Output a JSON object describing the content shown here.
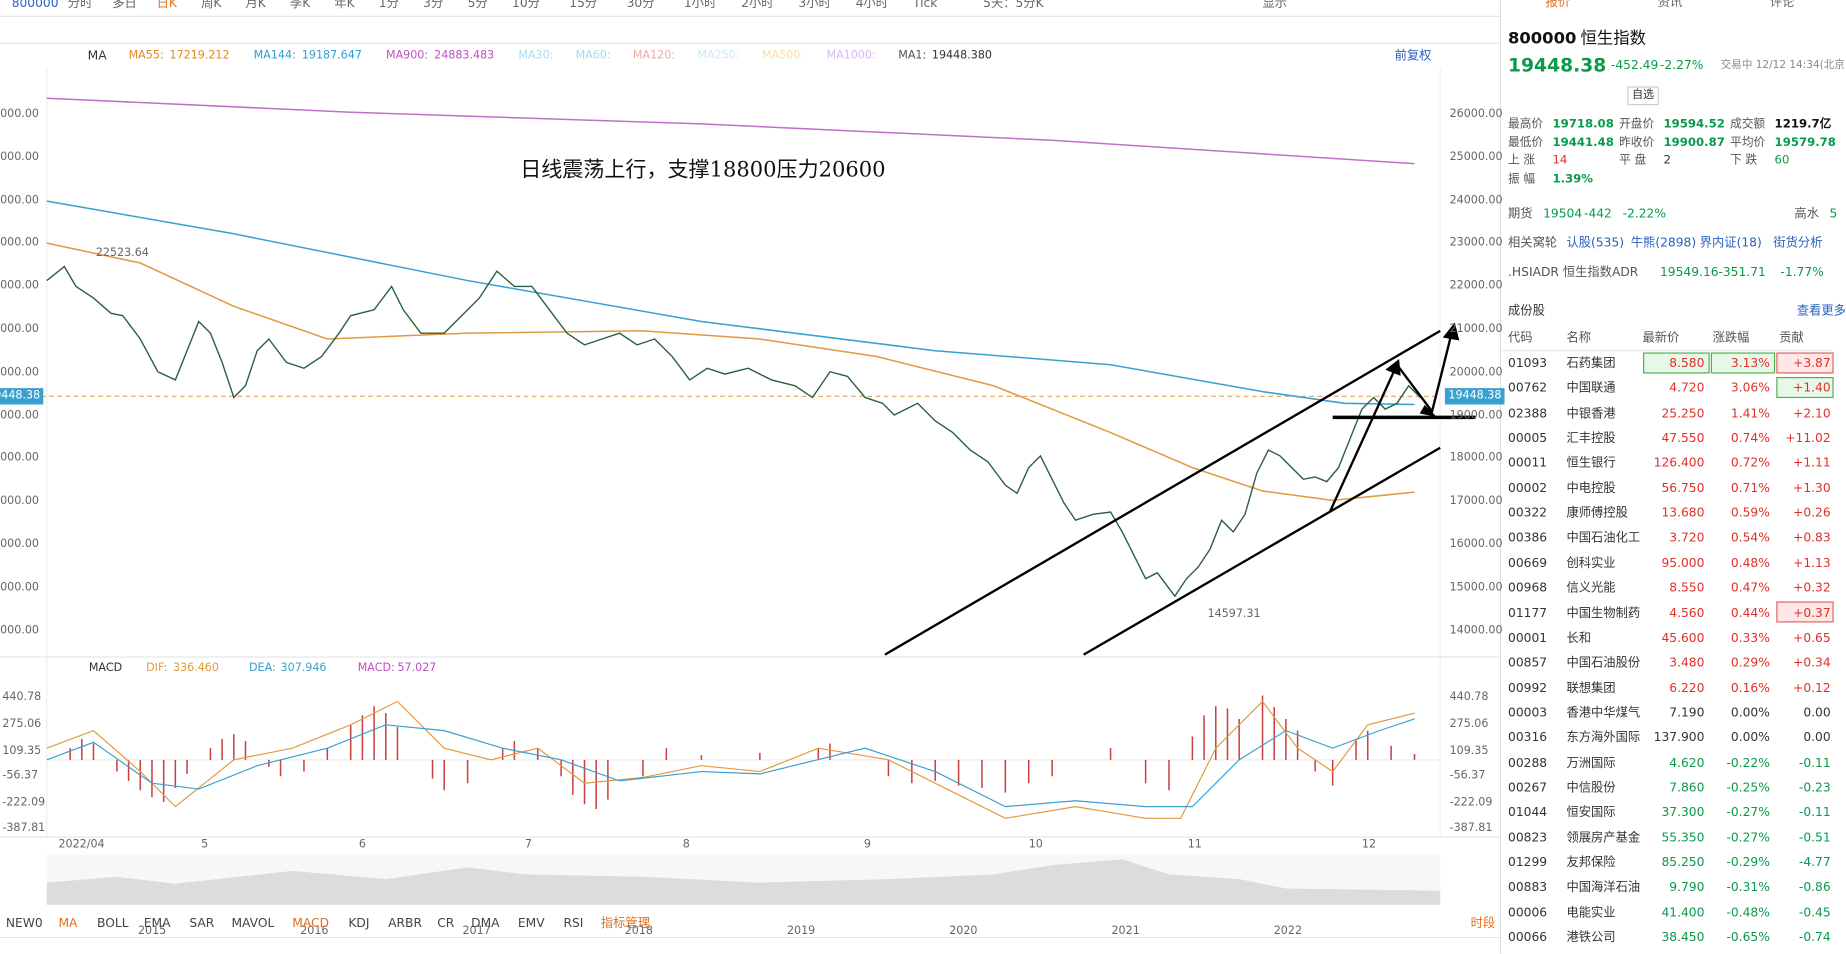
{
  "toolbar": {
    "symbol": "800000",
    "periods": [
      "分时",
      "多日",
      "日K",
      "周K",
      "月K",
      "季K",
      "年K",
      "1分",
      "3分",
      "5分",
      "10分",
      "15分",
      "30分",
      "1小时",
      "2小时",
      "3小时",
      "4小时",
      "Tick",
      "5天：5分K"
    ],
    "active": "日K",
    "display": "显示"
  },
  "ma_legend": {
    "label": "MA",
    "items": [
      {
        "name": "MA55:",
        "value": "17219.212",
        "color": "#e08a1e"
      },
      {
        "name": "MA144:",
        "value": "19187.647",
        "color": "#2a9fd6"
      },
      {
        "name": "MA900:",
        "value": "24883.483",
        "color": "#c050c0"
      },
      {
        "name": "MA30:",
        "color": "#a8d8f0"
      },
      {
        "name": "MA60:",
        "color": "#a8d8f0"
      },
      {
        "name": "MA120:",
        "color": "#f0a8a8"
      },
      {
        "name": "MA250:",
        "color": "#c8e8f8"
      },
      {
        "name": "MA500:",
        "color": "#f8e0a0"
      },
      {
        "name": "MA1000:",
        "color": "#d8b8f0"
      },
      {
        "name": "MA1:",
        "value": "19448.380",
        "color": "#555555"
      }
    ],
    "adjust": "前复权"
  },
  "price_axis": [
    "26000.00",
    "25000.00",
    "24000.00",
    "23000.00",
    "22000.00",
    "21000.00",
    "20000.00",
    "19000.00",
    "18000.00",
    "17000.00",
    "16000.00",
    "15000.00",
    "14000.00"
  ],
  "current_price": "19448.38",
  "annotations": {
    "note": "日线震荡上行，支撑18800压力20600",
    "high": "22523.64",
    "low": "14597.31"
  },
  "macd_legend": {
    "label": "MACD",
    "dif": "DIF:",
    "dif_value": "336.460",
    "dea": "DEA:",
    "dea_value": "307.946",
    "macd": "MACD:",
    "macd_value": "57.027"
  },
  "macd_axis": [
    "440.78",
    "275.06",
    "109.35",
    "-56.37",
    "-222.09",
    "-387.81"
  ],
  "months": [
    "2022/04",
    "5",
    "6",
    "7",
    "8",
    "9",
    "10",
    "11",
    "12"
  ],
  "years": [
    "2015",
    "2016",
    "2017",
    "2018",
    "2019",
    "2020",
    "2021",
    "2022"
  ],
  "indicators": [
    "NEW0",
    "MA",
    "BOLL",
    "EMA",
    "SAR",
    "MAVOL",
    "MACD",
    "KDJ",
    "ARBR",
    "CR",
    "DMA",
    "EMV",
    "RSI",
    "指标管理"
  ],
  "session": "时段",
  "panel": {
    "tabs": [
      "报价",
      "资讯",
      "评论"
    ],
    "code": "800000",
    "name": "恒生指数",
    "price": "19448.38",
    "change": "-452.49",
    "pct": "-2.27%",
    "status": "交易中 12/12 14:34(北京",
    "watch": "自选",
    "stats": [
      [
        "最高价",
        "19718.08",
        "开盘价",
        "19594.52",
        "成交额",
        "1219.7亿"
      ],
      [
        "最低价",
        "19441.48",
        "昨收价",
        "19900.87",
        "平均价",
        "19579.78"
      ],
      [
        "上 涨",
        "14",
        "平 盘",
        "2",
        "下 跌",
        "60"
      ],
      [
        "振 幅",
        "1.39%"
      ]
    ],
    "futures": [
      "期货",
      "19504",
      "-442",
      "-2.22%",
      "高水",
      "5"
    ],
    "related": [
      "相关窝轮",
      "认股(535)",
      "牛熊(2898)",
      "界内证(18)",
      "街货分析"
    ],
    "adr": [
      ".HSIADR 恒生指数ADR",
      "19549.16",
      "-351.71",
      "-1.77%"
    ]
  },
  "table": {
    "title": "成份股",
    "more": "查看更多",
    "headers": [
      "代码",
      "名称",
      "最新价",
      "涨跌幅",
      "贡献"
    ],
    "rows": [
      [
        "01093",
        "石药集团",
        "8.580",
        "3.13%",
        "+3.87"
      ],
      [
        "00762",
        "中国联通",
        "4.720",
        "3.06%",
        "+1.40"
      ],
      [
        "02388",
        "中银香港",
        "25.250",
        "1.41%",
        "+2.10"
      ],
      [
        "00005",
        "汇丰控股",
        "47.550",
        "0.74%",
        "+11.02"
      ],
      [
        "00011",
        "恒生银行",
        "126.400",
        "0.72%",
        "+1.11"
      ],
      [
        "00002",
        "中电控股",
        "56.750",
        "0.71%",
        "+1.30"
      ],
      [
        "00322",
        "康师傅控股",
        "13.680",
        "0.59%",
        "+0.26"
      ],
      [
        "00386",
        "中国石油化工",
        "3.720",
        "0.54%",
        "+0.83"
      ],
      [
        "00669",
        "创科实业",
        "95.000",
        "0.48%",
        "+1.13"
      ],
      [
        "00968",
        "信义光能",
        "8.550",
        "0.47%",
        "+0.32"
      ],
      [
        "01177",
        "中国生物制药",
        "4.560",
        "0.44%",
        "+0.37"
      ],
      [
        "00001",
        "长和",
        "45.600",
        "0.33%",
        "+0.65"
      ],
      [
        "00857",
        "中国石油股份",
        "3.480",
        "0.29%",
        "+0.34"
      ],
      [
        "00992",
        "联想集团",
        "6.220",
        "0.16%",
        "+0.12"
      ],
      [
        "00003",
        "香港中华煤气",
        "7.190",
        "0.00%",
        "0.00"
      ],
      [
        "00316",
        "东方海外国际",
        "137.900",
        "0.00%",
        "0.00"
      ],
      [
        "00288",
        "万洲国际",
        "4.620",
        "-0.22%",
        "-0.11"
      ],
      [
        "00267",
        "中信股份",
        "7.860",
        "-0.25%",
        "-0.23"
      ],
      [
        "01044",
        "恒安国际",
        "37.300",
        "-0.27%",
        "-0.11"
      ],
      [
        "00823",
        "领展房产基金",
        "55.350",
        "-0.27%",
        "-0.51"
      ],
      [
        "01299",
        "友邦保险",
        "85.250",
        "-0.29%",
        "-4.77"
      ],
      [
        "00883",
        "中国海洋石油",
        "9.790",
        "-0.31%",
        "-0.86"
      ],
      [
        "00006",
        "电能实业",
        "41.400",
        "-0.48%",
        "-0.45"
      ],
      [
        "00066",
        "港铁公司",
        "38.450",
        "-0.65%",
        "-0.74"
      ]
    ]
  }
}
